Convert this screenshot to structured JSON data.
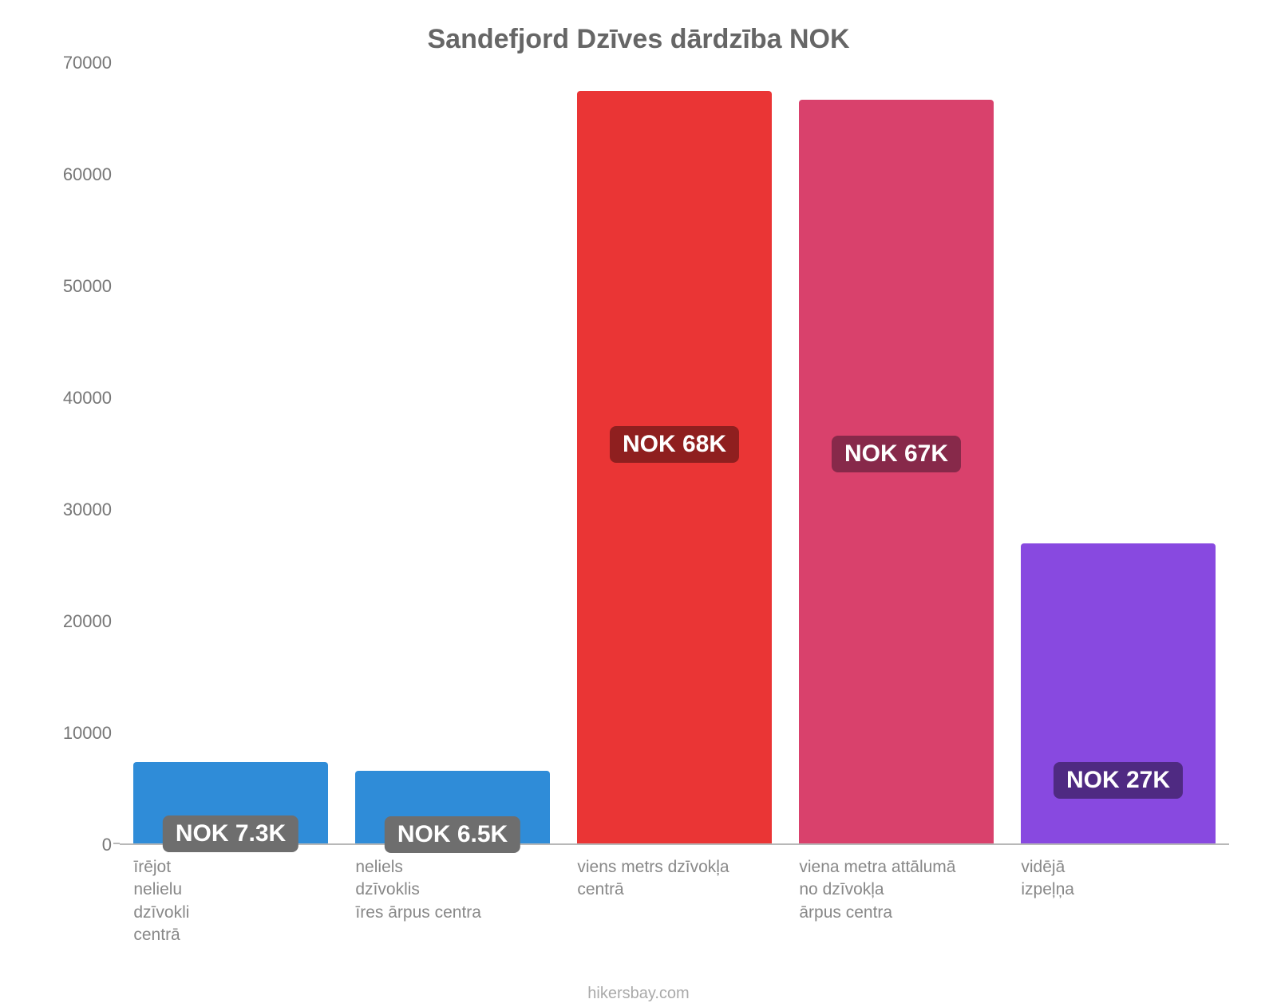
{
  "chart": {
    "type": "bar",
    "title": "Sandefjord Dzīves dārdzība NOK",
    "title_fontsize": 34,
    "title_color": "#666666",
    "background_color": "#ffffff",
    "ylim": [
      0,
      70000
    ],
    "ytick_step": 10000,
    "yticks": [
      0,
      10000,
      20000,
      30000,
      40000,
      50000,
      60000,
      70000
    ],
    "axis_color": "#b8b8b8",
    "tick_label_color": "#777777",
    "tick_label_fontsize": 22,
    "x_label_color": "#888888",
    "x_label_fontsize": 21,
    "bar_width_pct": 17.5,
    "group_width_pct": 20,
    "bars": [
      {
        "category": "īrējot\nnelielu\ndzīvokli\ncentrā",
        "value": 7300,
        "label": "NOK 7.3K",
        "bar_color": "#2f8cd8",
        "label_bg": "#6e6e6e",
        "label_text_color": "#ffffff"
      },
      {
        "category": "neliels\ndzīvoklis\nīres ārpus centra",
        "value": 6500,
        "label": "NOK 6.5K",
        "bar_color": "#2f8cd8",
        "label_bg": "#6e6e6e",
        "label_text_color": "#ffffff"
      },
      {
        "category": "viens metrs dzīvokļa\ncentrā",
        "value": 67500,
        "label": "NOK 68K",
        "bar_color": "#ea3535",
        "label_bg": "#8f1f1f",
        "label_text_color": "#ffffff"
      },
      {
        "category": "viena metra attālumā\nno dzīvokļa\nārpus centra",
        "value": 66700,
        "label": "NOK 67K",
        "bar_color": "#d9416c",
        "label_bg": "#87294a",
        "label_text_color": "#ffffff"
      },
      {
        "category": "vidējā\nizpeļņa",
        "value": 26900,
        "label": "NOK 27K",
        "bar_color": "#8849e0",
        "label_bg": "#4f2a82",
        "label_text_color": "#ffffff"
      }
    ],
    "credit": "hikersbay.com",
    "credit_color": "#aaaaaa",
    "credit_fontsize": 20
  }
}
